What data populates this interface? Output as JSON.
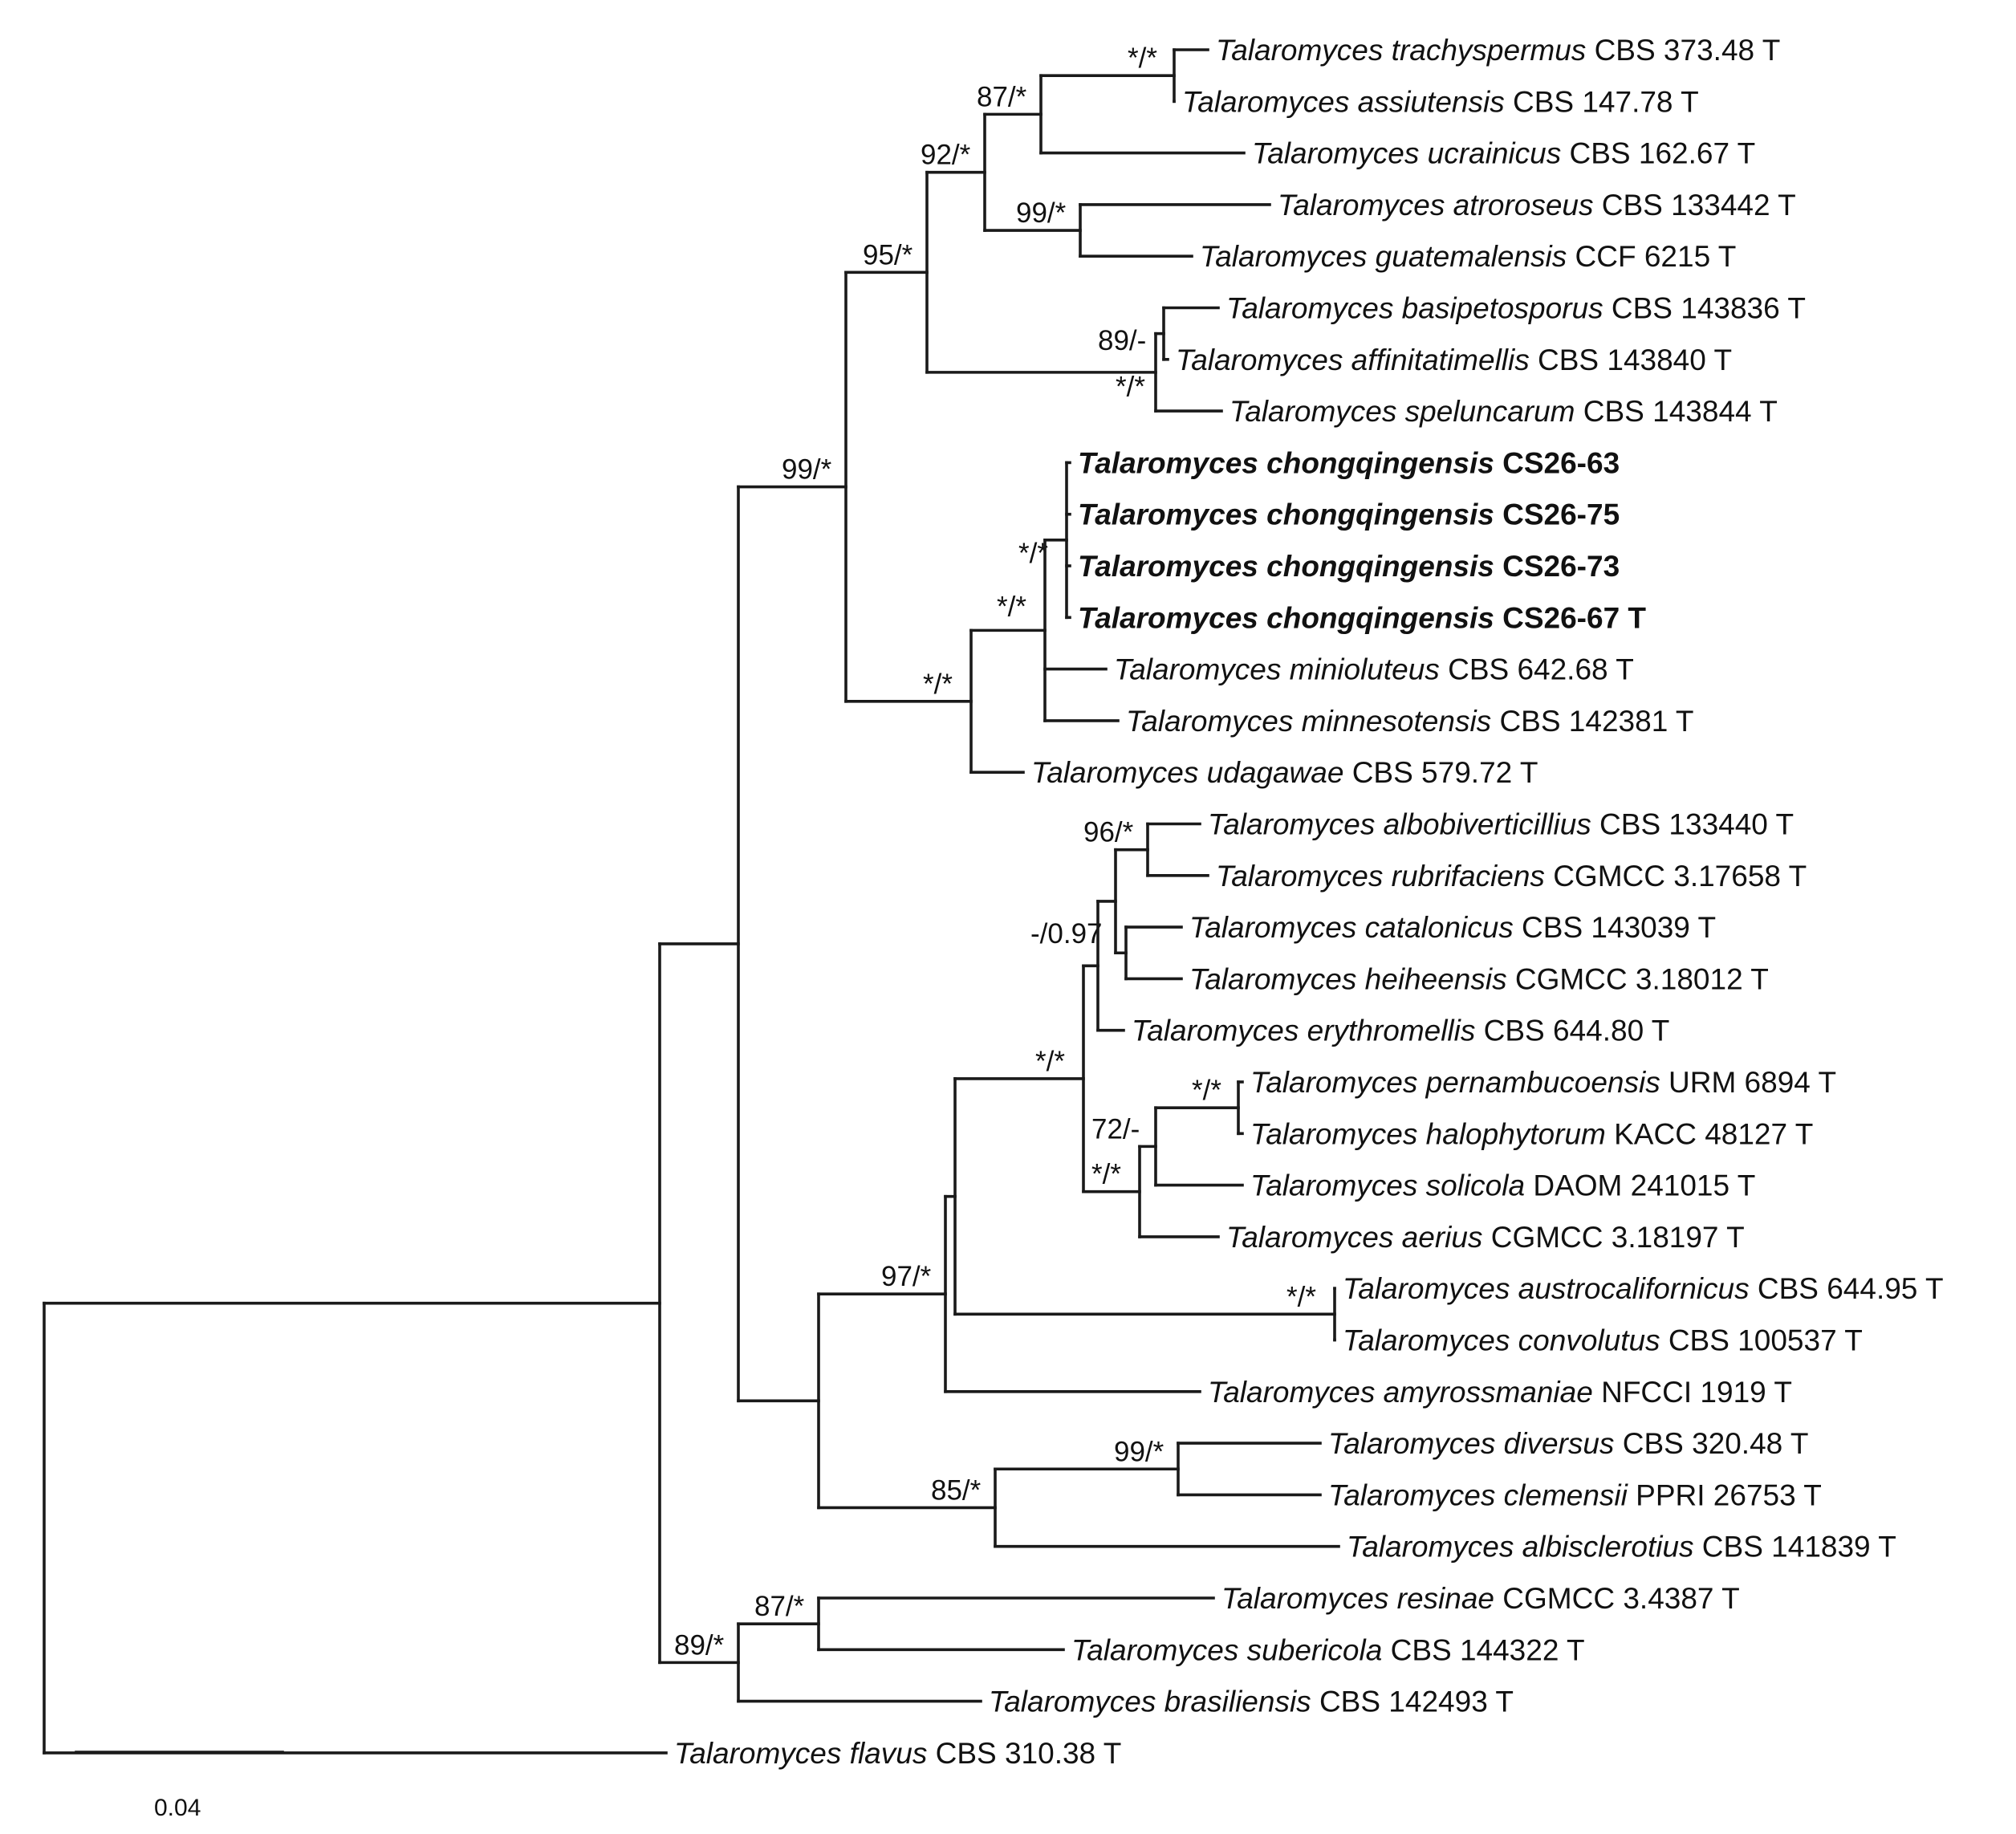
{
  "figure": {
    "type": "phylogenetic-tree",
    "scale_bar": {
      "label": "0.04",
      "value": 0.04
    }
  },
  "taxa": [
    {
      "id": "trachyspermus",
      "species": "Talaromyces trachyspermus",
      "strain": "CBS 373.48 T",
      "bold": false
    },
    {
      "id": "assiutensis",
      "species": "Talaromyces assiutensis",
      "strain": "CBS 147.78 T",
      "bold": false
    },
    {
      "id": "ucrainicus",
      "species": "Talaromyces ucrainicus",
      "strain": "CBS 162.67 T",
      "bold": false
    },
    {
      "id": "atroroseus",
      "species": "Talaromyces atroroseus",
      "strain": "CBS 133442 T",
      "bold": false
    },
    {
      "id": "guatemalensis",
      "species": "Talaromyces guatemalensis",
      "strain": "CCF 6215 T",
      "bold": false
    },
    {
      "id": "basipetosporus",
      "species": "Talaromyces basipetosporus",
      "strain": "CBS 143836 T",
      "bold": false
    },
    {
      "id": "affinitatimellis",
      "species": "Talaromyces affinitatimellis",
      "strain": "CBS 143840 T",
      "bold": false
    },
    {
      "id": "speluncarum",
      "species": "Talaromyces speluncarum",
      "strain": "CBS 143844 T",
      "bold": false
    },
    {
      "id": "cq63",
      "species": "Talaromyces chongqingensis",
      "strain": "CS26-63",
      "bold": true
    },
    {
      "id": "cq75",
      "species": "Talaromyces chongqingensis",
      "strain": "CS26-75",
      "bold": true
    },
    {
      "id": "cq73",
      "species": "Talaromyces chongqingensis",
      "strain": "CS26-73",
      "bold": true
    },
    {
      "id": "cq67",
      "species": "Talaromyces chongqingensis",
      "strain": "CS26-67 T",
      "bold": true
    },
    {
      "id": "minioluteus",
      "species": "Talaromyces minioluteus",
      "strain": "CBS 642.68 T",
      "bold": false
    },
    {
      "id": "minnesotensis",
      "species": "Talaromyces minnesotensis",
      "strain": "CBS 142381 T",
      "bold": false
    },
    {
      "id": "udagawae",
      "species": "Talaromyces udagawae",
      "strain": "CBS 579.72 T",
      "bold": false
    },
    {
      "id": "albobiverticillius",
      "species": "Talaromyces albobiverticillius",
      "strain": "CBS 133440 T",
      "bold": false
    },
    {
      "id": "rubrifaciens",
      "species": "Talaromyces rubrifaciens",
      "strain": "CGMCC 3.17658 T",
      "bold": false
    },
    {
      "id": "catalonicus",
      "species": "Talaromyces catalonicus",
      "strain": "CBS 143039 T",
      "bold": false
    },
    {
      "id": "heiheensis",
      "species": "Talaromyces heiheensis",
      "strain": "CGMCC 3.18012 T",
      "bold": false
    },
    {
      "id": "erythromellis",
      "species": "Talaromyces erythromellis",
      "strain": "CBS 644.80 T",
      "bold": false
    },
    {
      "id": "pernambucoensis",
      "species": "Talaromyces pernambucoensis",
      "strain": "URM 6894 T",
      "bold": false
    },
    {
      "id": "halophytorum",
      "species": "Talaromyces halophytorum",
      "strain": "KACC 48127 T",
      "bold": false
    },
    {
      "id": "solicola",
      "species": "Talaromyces solicola",
      "strain": "DAOM 241015 T",
      "bold": false
    },
    {
      "id": "aerius",
      "species": "Talaromyces aerius",
      "strain": "CGMCC 3.18197 T",
      "bold": false
    },
    {
      "id": "austrocalifornicus",
      "species": "Talaromyces austrocalifornicus",
      "strain": "CBS 644.95 T",
      "bold": false
    },
    {
      "id": "convolutus",
      "species": "Talaromyces convolutus",
      "strain": "CBS 100537 T",
      "bold": false
    },
    {
      "id": "amyrossmaniae",
      "species": "Talaromyces amyrossmaniae",
      "strain": "NFCCI 1919 T",
      "bold": false
    },
    {
      "id": "diversus",
      "species": "Talaromyces diversus",
      "strain": "CBS 320.48 T",
      "bold": false
    },
    {
      "id": "clemensii",
      "species": "Talaromyces clemensii",
      "strain": "PPRI 26753 T",
      "bold": false
    },
    {
      "id": "albisclerotius",
      "species": "Talaromyces albisclerotius",
      "strain": "CBS 141839 T",
      "bold": false
    },
    {
      "id": "resinae",
      "species": "Talaromyces resinae",
      "strain": "CGMCC 3.4387 T",
      "bold": false
    },
    {
      "id": "subericola",
      "species": "Talaromyces subericola",
      "strain": "CBS 144322 T",
      "bold": false
    },
    {
      "id": "brasiliensis",
      "species": "Talaromyces brasiliensis",
      "strain": "CBS 142493 T",
      "bold": false
    },
    {
      "id": "flavus",
      "species": "Talaromyces flavus",
      "strain": "CBS 310.38 T",
      "bold": false
    }
  ],
  "support_values": [
    {
      "id": "n_trach_assiu",
      "label": "*/*"
    },
    {
      "id": "n_87a",
      "label": "87/*"
    },
    {
      "id": "n_92",
      "label": "92/*"
    },
    {
      "id": "n_99a",
      "label": "99/*"
    },
    {
      "id": "n_95",
      "label": "95/*"
    },
    {
      "id": "n_89a",
      "label": "89/-"
    },
    {
      "id": "n_basi_aff",
      "label": "*/*"
    },
    {
      "id": "n_99b",
      "label": "99/*"
    },
    {
      "id": "n_chong",
      "label": "*/*"
    },
    {
      "id": "n_chong_mini",
      "label": "*/*"
    },
    {
      "id": "n_udag",
      "label": "*/*"
    },
    {
      "id": "n_96",
      "label": "96/*"
    },
    {
      "id": "n_097",
      "label": "-/0.97"
    },
    {
      "id": "n_ery",
      "label": "*/*"
    },
    {
      "id": "n_pern",
      "label": "*/*"
    },
    {
      "id": "n_72",
      "label": "72/-"
    },
    {
      "id": "n_sol",
      "label": "*/*"
    },
    {
      "id": "n_austro",
      "label": "*/*"
    },
    {
      "id": "n_97",
      "label": "97/*"
    },
    {
      "id": "n_99c",
      "label": "99/*"
    },
    {
      "id": "n_85",
      "label": "85/*"
    },
    {
      "id": "n_87b",
      "label": "87/*"
    },
    {
      "id": "n_89b",
      "label": "89/*"
    }
  ]
}
